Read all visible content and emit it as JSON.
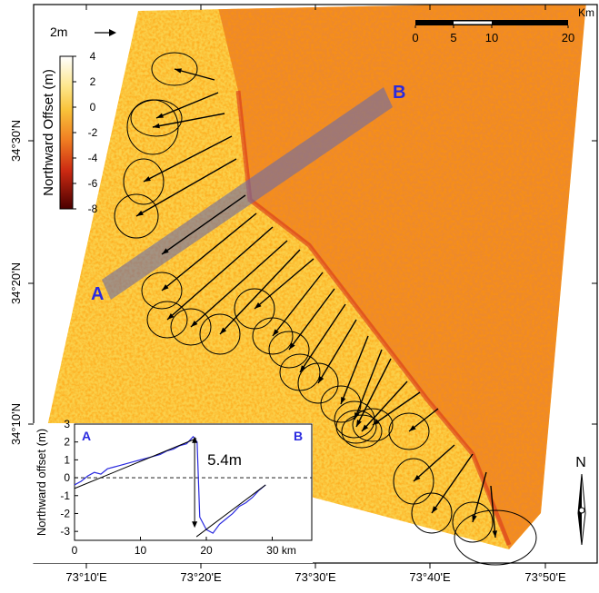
{
  "map": {
    "x_labels": [
      "73°10'E",
      "73°20'E",
      "73°30'E",
      "73°40'E",
      "73°50'E"
    ],
    "y_labels": [
      "34°30'N",
      "34°20'N",
      "34°10'N"
    ],
    "vector_scale": "2m",
    "colorbar": {
      "title": "Northward Offset (m)",
      "lim": [
        4,
        -8
      ],
      "ticks": [
        4,
        2,
        0,
        -2,
        -4,
        -6,
        -8
      ]
    },
    "scale_bar": {
      "unit": "Km",
      "lim": [
        0,
        20
      ],
      "ticks": [
        0,
        5,
        10,
        20
      ]
    },
    "profile_labels": [
      "A",
      "B"
    ],
    "north": "N"
  },
  "chart_data": {
    "type": "line",
    "y_label": "Northward offset (m)",
    "annotations": [
      "A",
      "B",
      "5.4m"
    ],
    "xlim": [
      0,
      36
    ],
    "ylim": [
      -3.5,
      3
    ],
    "xticks": [
      0,
      10,
      20,
      {
        "value": 30,
        "label": "30 km"
      }
    ],
    "yticks": [
      3,
      2,
      1,
      0,
      -1,
      -2,
      -3
    ],
    "series": [
      {
        "color": "#2a2adf",
        "x": [
          0,
          1,
          2,
          3,
          4,
          5,
          6,
          7,
          8,
          9,
          10,
          11,
          12,
          13,
          14,
          15,
          16,
          17,
          18,
          18.6,
          19,
          20,
          21,
          22,
          23,
          24,
          25,
          26,
          27,
          28,
          29
        ],
        "values": [
          -0.4,
          -0.2,
          0.1,
          0.3,
          0.2,
          0.5,
          0.6,
          0.7,
          0.8,
          0.9,
          1.0,
          1.1,
          1.2,
          1.3,
          1.5,
          1.6,
          1.8,
          1.9,
          2.3,
          2.0,
          -2.2,
          -2.9,
          -3.1,
          -2.6,
          -2.3,
          -2.0,
          -1.6,
          -1.4,
          -1.1,
          -0.7,
          -0.4
        ]
      },
      {
        "color": "#000000",
        "x": [
          0,
          18.5
        ],
        "values": [
          -0.6,
          2.2
        ]
      },
      {
        "color": "#000000",
        "x": [
          18.5,
          29
        ],
        "values": [
          -3.3,
          -0.4
        ]
      }
    ]
  }
}
